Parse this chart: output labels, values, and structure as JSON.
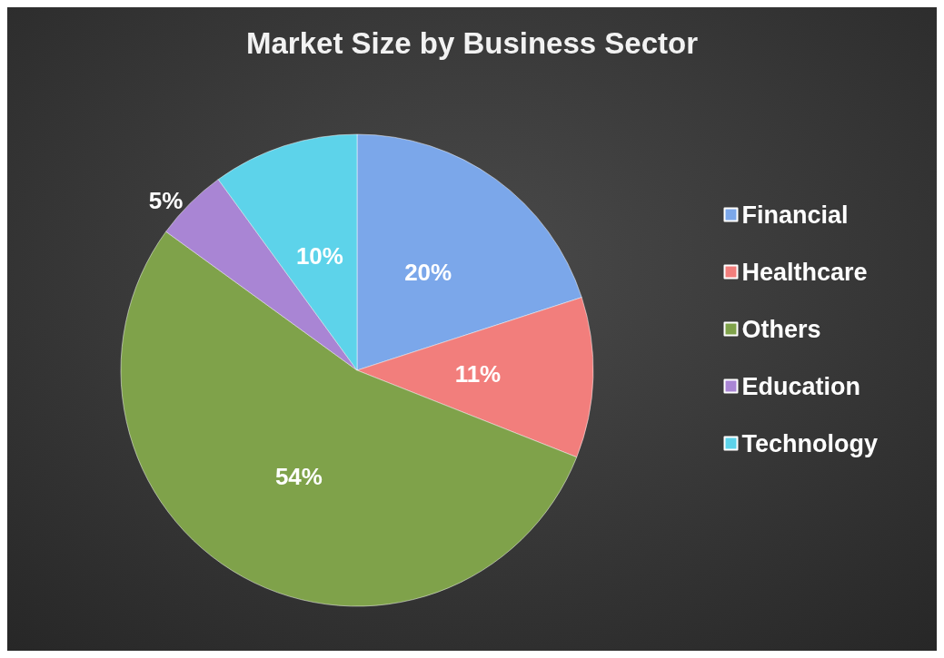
{
  "chart_data": {
    "type": "pie",
    "title": "Market Size by Business Sector",
    "categories": [
      "Financial",
      "Healthcare",
      "Others",
      "Education",
      "Technology"
    ],
    "values": [
      20,
      11,
      54,
      5,
      10
    ],
    "value_labels": [
      "20%",
      "11%",
      "54%",
      "5%",
      "10%"
    ],
    "colors": [
      "#7ba7ea",
      "#f27e7c",
      "#7fa24a",
      "#a985d4",
      "#5dd3ea"
    ],
    "legend": "right"
  }
}
